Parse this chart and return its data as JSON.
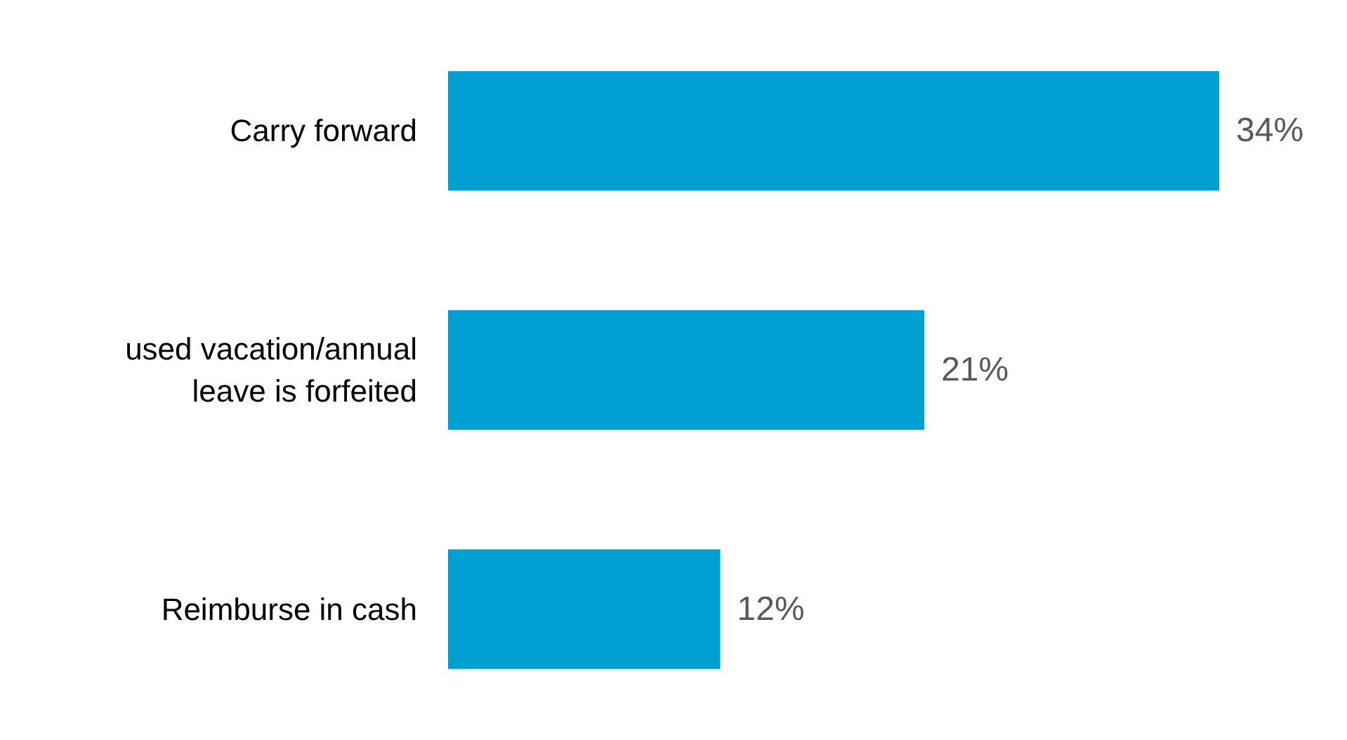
{
  "chart_data": {
    "type": "bar",
    "orientation": "horizontal",
    "categories": [
      "Carry forward",
      "used vacation/annual\nleave is forfeited",
      "Reimburse in cash"
    ],
    "values": [
      34,
      21,
      12
    ],
    "color": "#00a0d2",
    "data_labels": true,
    "value_labels": [
      "34%",
      "21%",
      "12%"
    ]
  }
}
